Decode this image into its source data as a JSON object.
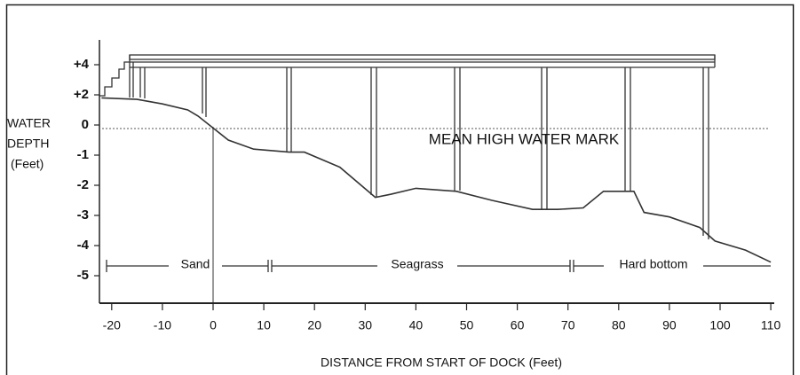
{
  "chart_data": {
    "type": "line",
    "y_label": [
      "WATER",
      "DEPTH",
      "(Feet)"
    ],
    "x_label": "DISTANCE FROM START OF DOCK (Feet)",
    "annotation": "MEAN HIGH WATER MARK",
    "zones": [
      "Sand",
      "Seagrass",
      "Hard bottom"
    ],
    "xlim": [
      -22,
      110
    ],
    "xticks": [
      -20,
      -10,
      0,
      10,
      20,
      30,
      40,
      50,
      60,
      70,
      {
        "value": 80,
        "label": "80"
      },
      90,
      100,
      110
    ],
    "yticks": [
      {
        "value": 4,
        "label": "+4"
      },
      {
        "value": 2,
        "label": "+2"
      },
      0,
      -1,
      -2,
      -3,
      -4,
      -5
    ],
    "x": [
      -22,
      -15,
      -10,
      -5,
      -3,
      0,
      3,
      8,
      15,
      18,
      25,
      32,
      35,
      40,
      48,
      55,
      63,
      68,
      73,
      77,
      83,
      85,
      90,
      96,
      99,
      105,
      110
    ],
    "series": [
      {
        "color": "#333333",
        "values": [
          1.8,
          1.7,
          1.4,
          1.0,
          0.6,
          -0.1,
          -0.5,
          -0.8,
          -0.9,
          -0.9,
          -1.4,
          -2.4,
          -2.3,
          -2.1,
          -2.2,
          -2.5,
          -2.8,
          -2.8,
          -2.75,
          -2.2,
          -2.2,
          -2.9,
          -3.05,
          -3.4,
          -3.85,
          -4.15,
          -4.55
        ]
      }
    ]
  }
}
